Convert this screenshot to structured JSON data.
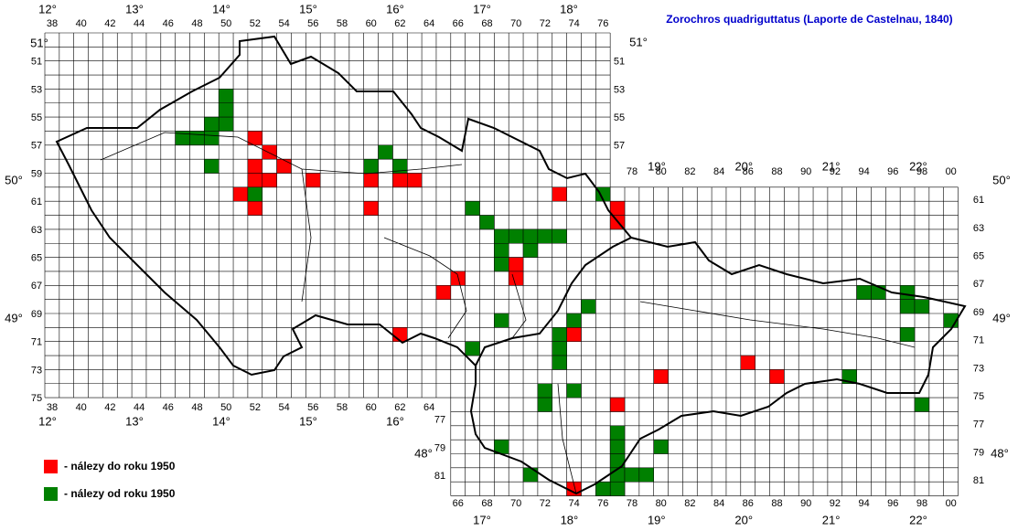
{
  "title": "Zorochros quadriguttatus (Laporte de Castelnau, 1840)",
  "labels": {
    "czech_top": [
      "38",
      "40",
      "42",
      "44",
      "46",
      "48",
      "50",
      "52",
      "54",
      "56",
      "58",
      "60",
      "62",
      "64",
      "66",
      "68",
      "70",
      "72",
      "74",
      "76"
    ],
    "czech_bottom": [
      "38",
      "40",
      "42",
      "44",
      "46",
      "48",
      "50",
      "52",
      "54",
      "56",
      "58",
      "60",
      "62",
      "64"
    ],
    "czech_left": [
      "51",
      "53",
      "55",
      "57",
      "59",
      "61",
      "63",
      "65",
      "67",
      "69",
      "71",
      "73",
      "75"
    ],
    "czech_right": [
      "51",
      "53",
      "55",
      "57"
    ],
    "slovak_top": [
      "78",
      "80",
      "82",
      "84",
      "86",
      "88",
      "90",
      "92",
      "94",
      "96",
      "98",
      "00"
    ],
    "slovak_bottom": [
      "66",
      "68",
      "70",
      "72",
      "74",
      "76",
      "78",
      "80",
      "82",
      "84",
      "86",
      "88",
      "90",
      "92",
      "94",
      "96",
      "98",
      "00"
    ],
    "slovak_left": [
      "77",
      "79",
      "81"
    ],
    "slovak_right": [
      "61",
      "63",
      "65",
      "67",
      "69",
      "71",
      "73",
      "75",
      "77",
      "79",
      "81"
    ]
  },
  "degrees": {
    "czech_top": [
      "12°",
      "13°",
      "14°",
      "15°",
      "16°",
      "17°",
      "18°"
    ],
    "czech_bottom": [
      "12°",
      "13°",
      "14°",
      "15°",
      "16°"
    ],
    "slovak_top": [
      "19°",
      "20°",
      "21°",
      "22°"
    ],
    "slovak_bottom": [
      "17°",
      "18°",
      "19°",
      "20°",
      "21°",
      "22°"
    ],
    "lat_left": [
      "51°",
      "50°",
      "49°"
    ],
    "lat_right": [
      "51°",
      "50°",
      "49°"
    ],
    "lat48_left": "48°",
    "lat48_right": "48°"
  },
  "records": [
    {
      "label": "- nálezy do roku 1950",
      "color": "#ff0000",
      "cells": [
        [
          52,
          57
        ],
        [
          53,
          58
        ],
        [
          54,
          59
        ],
        [
          52,
          59
        ],
        [
          52,
          60
        ],
        [
          53,
          60
        ],
        [
          56,
          60
        ],
        [
          51,
          61
        ],
        [
          52,
          62
        ],
        [
          60,
          60
        ],
        [
          62,
          60
        ],
        [
          63,
          60
        ],
        [
          60,
          62
        ],
        [
          73,
          61
        ],
        [
          77,
          62
        ],
        [
          77,
          63
        ],
        [
          70,
          66
        ],
        [
          70,
          67
        ],
        [
          66,
          67
        ],
        [
          65,
          68
        ],
        [
          62,
          71
        ],
        [
          74,
          71
        ],
        [
          80,
          74
        ],
        [
          86,
          73
        ],
        [
          88,
          74
        ],
        [
          77,
          76
        ],
        [
          74,
          82
        ]
      ]
    },
    {
      "label": "- nálezy od roku 1950",
      "color": "#008000",
      "cells": [
        [
          50,
          54
        ],
        [
          50,
          55
        ],
        [
          49,
          56
        ],
        [
          50,
          56
        ],
        [
          49,
          57
        ],
        [
          48,
          57
        ],
        [
          47,
          57
        ],
        [
          49,
          59
        ],
        [
          52,
          61
        ],
        [
          61,
          58
        ],
        [
          60,
          59
        ],
        [
          62,
          59
        ],
        [
          76,
          61
        ],
        [
          67,
          62
        ],
        [
          68,
          63
        ],
        [
          69,
          64
        ],
        [
          69,
          65
        ],
        [
          69,
          66
        ],
        [
          70,
          64
        ],
        [
          71,
          64
        ],
        [
          72,
          64
        ],
        [
          73,
          64
        ],
        [
          71,
          65
        ],
        [
          75,
          69
        ],
        [
          74,
          70
        ],
        [
          69,
          70
        ],
        [
          73,
          71
        ],
        [
          73,
          72
        ],
        [
          73,
          73
        ],
        [
          74,
          75
        ],
        [
          72,
          75
        ],
        [
          72,
          76
        ],
        [
          67,
          72
        ],
        [
          69,
          79
        ],
        [
          71,
          81
        ],
        [
          77,
          78
        ],
        [
          77,
          79
        ],
        [
          77,
          80
        ],
        [
          77,
          81
        ],
        [
          77,
          82
        ],
        [
          76,
          82
        ],
        [
          78,
          81
        ],
        [
          79,
          81
        ],
        [
          80,
          79
        ],
        [
          94,
          68
        ],
        [
          95,
          68
        ],
        [
          97,
          68
        ],
        [
          97,
          69
        ],
        [
          98,
          69
        ],
        [
          100,
          70
        ],
        [
          97,
          71
        ],
        [
          93,
          74
        ],
        [
          98,
          76
        ]
      ]
    }
  ]
}
